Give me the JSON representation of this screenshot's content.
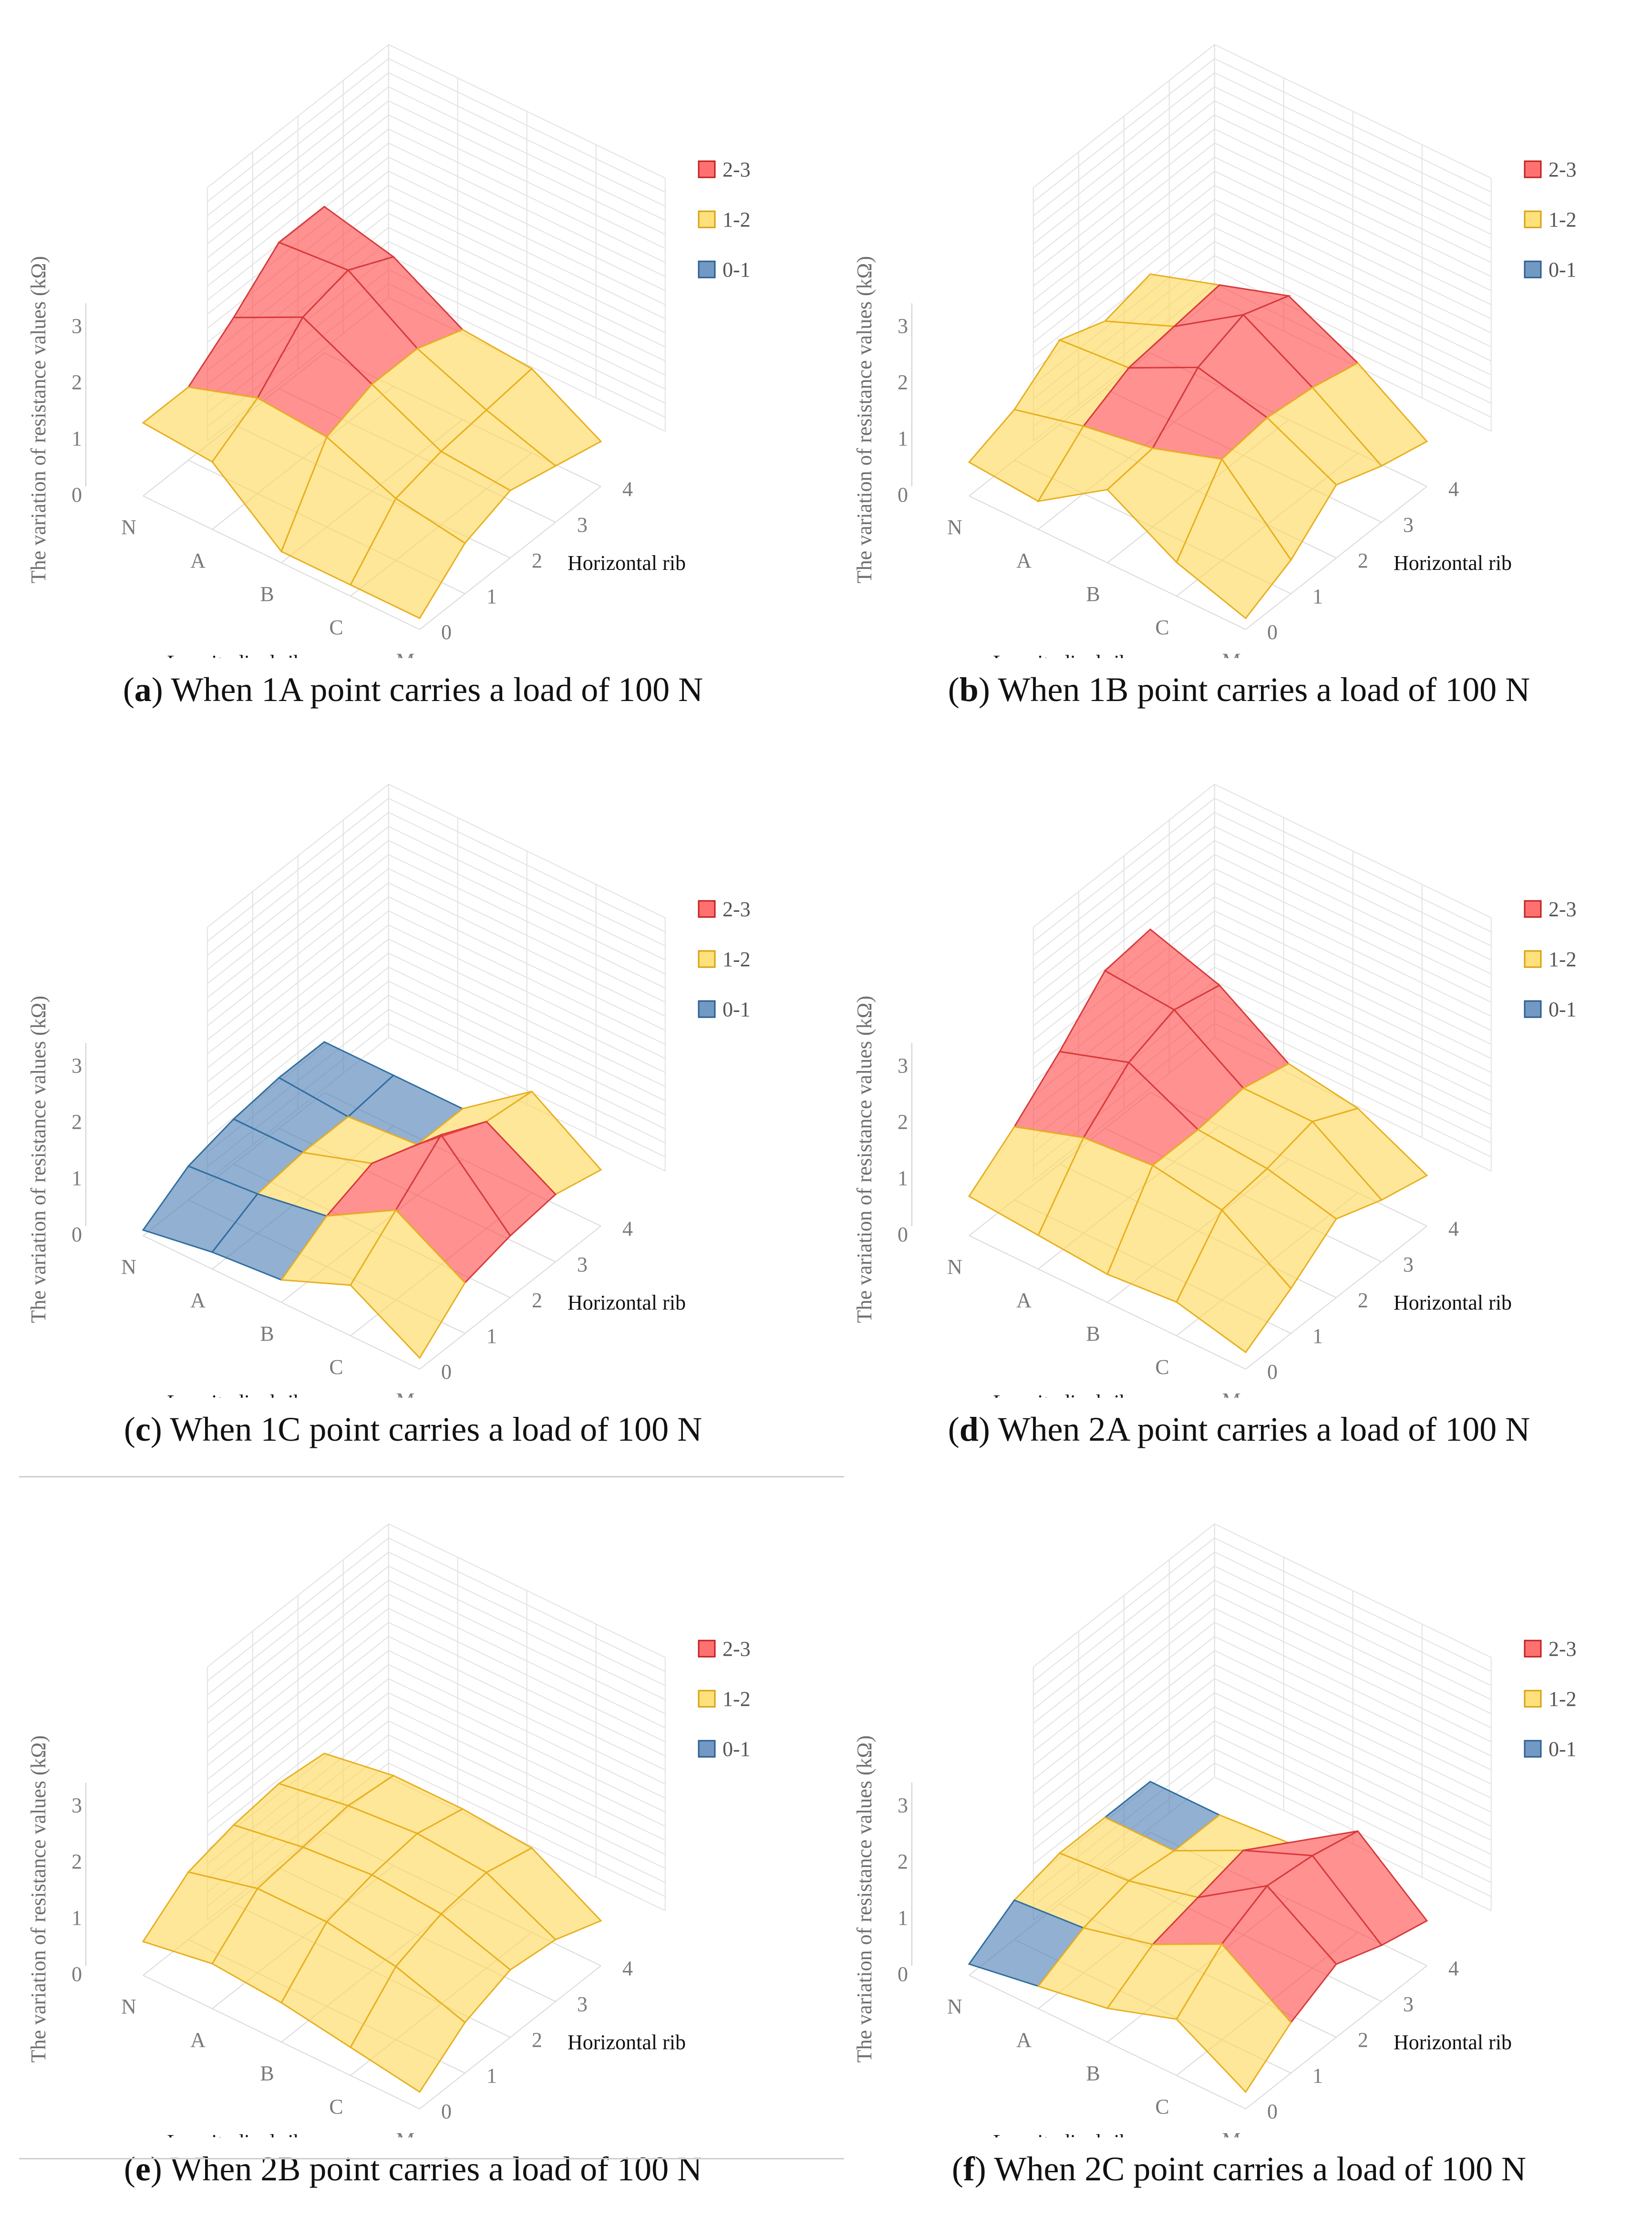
{
  "legend_colors": {
    "2-3": "#ff4d4d",
    "1-2": "#ffd95a",
    "0-1": "#4f7fb5"
  },
  "chart_data": [
    {
      "type": "surface3d",
      "panel_label": "a",
      "caption_text": "When 1A point carries a load of 100 N",
      "zlabel": "The variation of resistance values (kΩ)",
      "xlabel": "Longitudinal rib",
      "ylabel": "Horizontal rib",
      "x_ticks": [
        "N",
        "A",
        "B",
        "C",
        "M"
      ],
      "y_ticks": [
        "0",
        "1",
        "2",
        "3",
        "4"
      ],
      "z_ticks": [
        "0",
        "1",
        "2",
        "3"
      ],
      "zlim": [
        0,
        3
      ],
      "legend": [
        "2-3",
        "1-2",
        "0-1"
      ],
      "z": [
        [
          1.3,
          1.3,
          1.9,
          2.6,
          2.6
        ],
        [
          1.2,
          1.7,
          2.5,
          2.7,
          2.3
        ],
        [
          0.2,
          1.6,
          1.9,
          1.9,
          1.6
        ],
        [
          0.2,
          1.1,
          1.3,
          1.4,
          1.5
        ],
        [
          0.2,
          0.9,
          1.2,
          1.0,
          0.8
        ]
      ]
    },
    {
      "type": "surface3d",
      "panel_label": "b",
      "caption_text": "When 1B point carries a load of 100 N",
      "zlabel": "The variation of resistance values (kΩ)",
      "xlabel": "Longitudinal rib",
      "ylabel": "Horizontal rib",
      "x_ticks": [
        "N",
        "A",
        "B",
        "C",
        "M"
      ],
      "y_ticks": [
        "0",
        "1",
        "2",
        "3",
        "4"
      ],
      "z_ticks": [
        "0",
        "1",
        "2",
        "3"
      ],
      "zlim": [
        0,
        3
      ],
      "legend": [
        "2-3",
        "1-2",
        "0-1"
      ],
      "z": [
        [
          0.6,
          0.9,
          1.5,
          1.2,
          1.4
        ],
        [
          0.5,
          1.2,
          1.6,
          1.7,
          1.8
        ],
        [
          1.3,
          1.4,
          2.2,
          2.5,
          2.2
        ],
        [
          0.6,
          1.8,
          1.9,
          1.8,
          1.6
        ],
        [
          0.2,
          0.6,
          1.3,
          1.0,
          0.8
        ]
      ]
    },
    {
      "type": "surface3d",
      "panel_label": "c",
      "caption_text": "When 1C point carries a load of 100 N",
      "zlabel": "The variation of resistance values (kΩ)",
      "xlabel": "Longitudinal rib",
      "ylabel": "Horizontal rib",
      "x_ticks": [
        "N",
        "A",
        "B",
        "C",
        "M"
      ],
      "y_ticks": [
        "0",
        "1",
        "2",
        "3",
        "4"
      ],
      "z_ticks": [
        "0",
        "1",
        "2",
        "3"
      ],
      "zlim": [
        0,
        3
      ],
      "legend": [
        "2-3",
        "1-2",
        "0-1"
      ],
      "z": [
        [
          0.1,
          0.6,
          0.8,
          0.9,
          0.9
        ],
        [
          0.3,
          0.7,
          0.8,
          0.8,
          0.9
        ],
        [
          0.4,
          0.9,
          1.2,
          0.9,
          0.9
        ],
        [
          0.9,
          1.6,
          2.3,
          1.9,
          1.8
        ],
        [
          0.2,
          0.9,
          1.1,
          1.2,
          1.0
        ]
      ]
    },
    {
      "type": "surface3d",
      "panel_label": "d",
      "caption_text": "When 2A point carries a load of 100 N",
      "zlabel": "The variation of resistance values (kΩ)",
      "xlabel": "Longitudinal rib",
      "ylabel": "Horizontal rib",
      "x_ticks": [
        "N",
        "A",
        "B",
        "C",
        "M"
      ],
      "y_ticks": [
        "0",
        "1",
        "2",
        "3",
        "4"
      ],
      "z_ticks": [
        "0",
        "1",
        "2",
        "3"
      ],
      "zlim": [
        0,
        3
      ],
      "legend": [
        "2-3",
        "1-2",
        "0-1"
      ],
      "z": [
        [
          0.7,
          1.3,
          2.0,
          2.8,
          2.9
        ],
        [
          0.6,
          1.7,
          2.4,
          2.7,
          2.5
        ],
        [
          0.5,
          1.8,
          1.8,
          1.9,
          1.7
        ],
        [
          0.6,
          1.6,
          1.7,
          1.9,
          1.5
        ],
        [
          0.3,
          0.8,
          1.4,
          1.1,
          0.9
        ]
      ]
    },
    {
      "type": "surface3d",
      "panel_label": "e",
      "caption_text": "When 2B point carries a load of 100 N",
      "zlabel": "The variation of resistance values (kΩ)",
      "xlabel": "Longitudinal rib",
      "ylabel": "Horizontal rib",
      "x_ticks": [
        "N",
        "A",
        "B",
        "C",
        "M"
      ],
      "y_ticks": [
        "0",
        "1",
        "2",
        "3",
        "4"
      ],
      "z_ticks": [
        "0",
        "1",
        "2",
        "3"
      ],
      "zlim": [
        0,
        3
      ],
      "legend": [
        "2-3",
        "1-2",
        "0-1"
      ],
      "z": [
        [
          0.6,
          1.2,
          1.4,
          1.5,
          1.4
        ],
        [
          0.8,
          1.5,
          1.6,
          1.7,
          1.6
        ],
        [
          0.7,
          1.5,
          1.7,
          1.8,
          1.6
        ],
        [
          0.5,
          1.3,
          1.6,
          1.7,
          1.5
        ],
        [
          0.3,
          0.9,
          1.2,
          1.1,
          0.8
        ]
      ]
    },
    {
      "type": "surface3d",
      "panel_label": "f",
      "caption_text": "When 2C point carries a load of 100 N",
      "zlabel": "The variation of resistance values (kΩ)",
      "xlabel": "Longitudinal rib",
      "ylabel": "Horizontal rib",
      "x_ticks": [
        "N",
        "A",
        "B",
        "C",
        "M"
      ],
      "y_ticks": [
        "0",
        "1",
        "2",
        "3",
        "4"
      ],
      "z_ticks": [
        "0",
        "1",
        "2",
        "3"
      ],
      "zlim": [
        0,
        3
      ],
      "legend": [
        "2-3",
        "1-2",
        "0-1"
      ],
      "z": [
        [
          0.2,
          0.7,
          0.9,
          0.9,
          0.9
        ],
        [
          0.4,
          0.8,
          1.0,
          0.9,
          0.9
        ],
        [
          0.6,
          1.1,
          1.3,
          1.5,
          1.0
        ],
        [
          1.0,
          1.7,
          2.1,
          2.0,
          1.8
        ],
        [
          0.3,
          0.9,
          1.3,
          1.0,
          0.8
        ]
      ]
    }
  ]
}
